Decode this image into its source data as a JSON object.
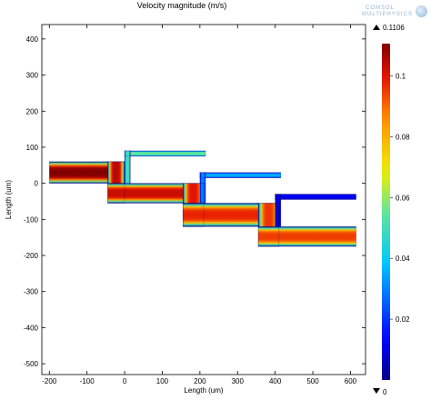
{
  "chart_data": {
    "type": "heatmap",
    "title": "Velocity magnitude (m/s)",
    "xlabel": "Length (um)",
    "ylabel": "Length (um)",
    "xlim": [
      -220,
      640
    ],
    "ylim": [
      -530,
      440
    ],
    "xticks": [
      -200,
      -100,
      0,
      100,
      200,
      300,
      400,
      500,
      600
    ],
    "yticks": [
      400,
      300,
      200,
      100,
      0,
      -100,
      -200,
      -300,
      -400,
      -500
    ],
    "colorbar": {
      "min": 0,
      "max": 0.1106,
      "ticks": [
        0.02,
        0.04,
        0.06,
        0.08,
        0.1
      ],
      "max_label": "0.1106",
      "min_label": "0",
      "colormap": "rainbow"
    },
    "channels": [
      {
        "shape": "main-inlet",
        "x": [
          -200,
          0
        ],
        "y": [
          0,
          60
        ],
        "peak": 0.1106
      },
      {
        "shape": "step-down",
        "x": [
          -45,
          0
        ],
        "y": [
          -55,
          60
        ],
        "peak": 0.105
      },
      {
        "shape": "segment",
        "x": [
          -45,
          210
        ],
        "y": [
          -55,
          0
        ],
        "peak": 0.103
      },
      {
        "shape": "side-branch",
        "x": [
          0,
          215
        ],
        "y": [
          75,
          90
        ],
        "peak": 0.055
      },
      {
        "shape": "side-branch-stem",
        "x": [
          0,
          15
        ],
        "y": [
          0,
          90
        ],
        "peak": 0.05
      },
      {
        "shape": "step-down",
        "x": [
          155,
          210
        ],
        "y": [
          -120,
          0
        ],
        "peak": 0.1
      },
      {
        "shape": "segment",
        "x": [
          155,
          410
        ],
        "y": [
          -120,
          -55
        ],
        "peak": 0.098
      },
      {
        "shape": "side-branch",
        "x": [
          200,
          415
        ],
        "y": [
          15,
          30
        ],
        "peak": 0.035
      },
      {
        "shape": "side-branch-stem",
        "x": [
          200,
          215
        ],
        "y": [
          -55,
          30
        ],
        "peak": 0.03
      },
      {
        "shape": "step-down",
        "x": [
          355,
          410
        ],
        "y": [
          -175,
          -55
        ],
        "peak": 0.096
      },
      {
        "shape": "segment",
        "x": [
          355,
          615
        ],
        "y": [
          -175,
          -120
        ],
        "peak": 0.095
      },
      {
        "shape": "side-branch",
        "x": [
          400,
          615
        ],
        "y": [
          -45,
          -30
        ],
        "peak": 0.012
      },
      {
        "shape": "side-branch-stem",
        "x": [
          400,
          415
        ],
        "y": [
          -120,
          -30
        ],
        "peak": 0.01
      }
    ]
  },
  "brand": {
    "line1": "COMSOL",
    "line2": "MULTIPHYSICS"
  }
}
